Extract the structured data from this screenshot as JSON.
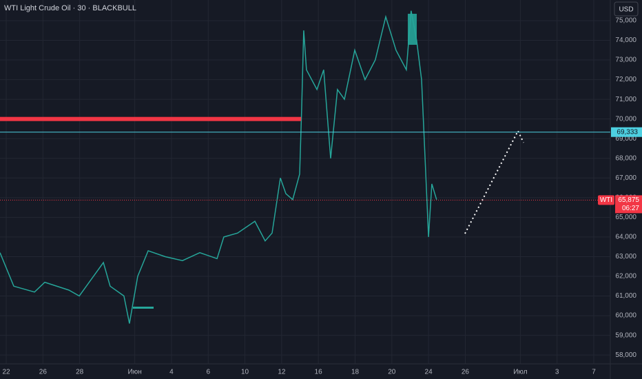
{
  "chart_data": {
    "type": "line",
    "title": "WTI Light Crude Oil · 30 · BLACKBULL",
    "currency": "USD",
    "color": "#26a69a",
    "x": [
      -0.34,
      0.41,
      1.54,
      2.1,
      3.41,
      3.98,
      5.29,
      5.66,
      6.41,
      6.71,
      7.16,
      7.73,
      8.66,
      9.6,
      10.54,
      11.48,
      11.85,
      12.6,
      13.54,
      14.1,
      14.48,
      14.93,
      15.23,
      15.6,
      15.98,
      16.09,
      16.2,
      16.35,
      16.92,
      17.29,
      17.67,
      18.04,
      18.42,
      18.98,
      19.54,
      20.1,
      20.67,
      21.23,
      21.79,
      22.05,
      22.35,
      22.62,
      22.81,
      23.0,
      23.18,
      23.44
    ],
    "values": [
      63.2,
      61.5,
      61.2,
      61.7,
      61.3,
      61.0,
      62.7,
      61.5,
      61.0,
      59.6,
      62.0,
      63.3,
      63.0,
      62.8,
      63.2,
      62.9,
      64.0,
      64.2,
      64.8,
      63.8,
      64.2,
      67.0,
      66.2,
      65.9,
      67.2,
      70.5,
      74.5,
      72.5,
      71.5,
      72.5,
      68.0,
      71.5,
      71.0,
      73.5,
      72.0,
      73.0,
      75.2,
      73.5,
      72.5,
      75.5,
      74.0,
      72.0,
      68.0,
      64.0,
      66.7,
      65.9
    ],
    "xlim": [
      -0.34,
      32.9
    ],
    "ylim": [
      57.55,
      76.05
    ],
    "xticks": [
      {
        "value": 0,
        "label": "22"
      },
      {
        "value": 2,
        "label": "26"
      },
      {
        "value": 4,
        "label": "28"
      },
      {
        "value": 7,
        "label": "Июн"
      },
      {
        "value": 9,
        "label": "4"
      },
      {
        "value": 11,
        "label": "6"
      },
      {
        "value": 13,
        "label": "10"
      },
      {
        "value": 15,
        "label": "12"
      },
      {
        "value": 17,
        "label": "16"
      },
      {
        "value": 19,
        "label": "18"
      },
      {
        "value": 21,
        "label": "20"
      },
      {
        "value": 23,
        "label": "24"
      },
      {
        "value": 25,
        "label": "26"
      },
      {
        "value": 28,
        "label": "Июл"
      },
      {
        "value": 30,
        "label": "3"
      },
      {
        "value": 32,
        "label": "7"
      }
    ],
    "yticks": [
      {
        "value": 58,
        "label": "58,000"
      },
      {
        "value": 59,
        "label": "59,000"
      },
      {
        "value": 60,
        "label": "60,000"
      },
      {
        "value": 61,
        "label": "61,000"
      },
      {
        "value": 62,
        "label": "62,000"
      },
      {
        "value": 63,
        "label": "63,000"
      },
      {
        "value": 64,
        "label": "64,000"
      },
      {
        "value": 65,
        "label": "65,000"
      },
      {
        "value": 66,
        "label": "66,000"
      },
      {
        "value": 67,
        "label": "67,000"
      },
      {
        "value": 68,
        "label": "68,000"
      },
      {
        "value": 69,
        "label": "69,000"
      },
      {
        "value": 70,
        "label": "70,000"
      },
      {
        "value": 71,
        "label": "71,000"
      },
      {
        "value": 72,
        "label": "72,000"
      },
      {
        "value": 73,
        "label": "73,000"
      },
      {
        "value": 74,
        "label": "74,000"
      },
      {
        "value": 75,
        "label": "75,000"
      }
    ],
    "grid": true,
    "resistance": {
      "value": 70.0,
      "end_x": 16.06,
      "color": "#f23645"
    },
    "level": {
      "value": 69.333,
      "label": "69,333",
      "color": "#4dd0e1"
    },
    "last_price": {
      "symbol": "WTI",
      "value": 65.875,
      "label": "65,875",
      "countdown": "06:27",
      "color": "#f23645"
    }
  }
}
